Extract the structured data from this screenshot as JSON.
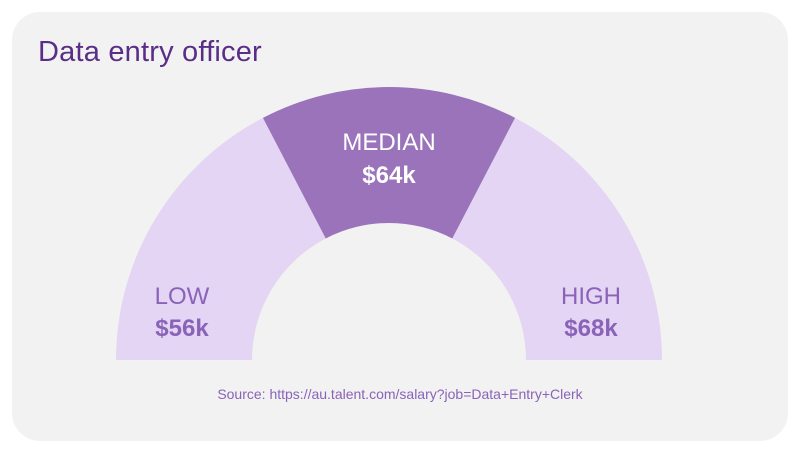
{
  "chart_data": {
    "type": "gauge",
    "title": "Data entry officer",
    "segments": [
      {
        "key": "low",
        "label": "LOW",
        "value_label": "$56k",
        "value": 56
      },
      {
        "key": "median",
        "label": "MEDIAN",
        "value_label": "$64k",
        "value": 64
      },
      {
        "key": "high",
        "label": "HIGH",
        "value_label": "$68k",
        "value": 68
      }
    ],
    "source": "Source: https://au.talent.com/salary?job=Data+Entry+Clerk",
    "colors": {
      "light": "#e3d5f3",
      "highlight": "#9a73ba",
      "light_text": "#8a63b8",
      "highlight_text": "#ffffff"
    }
  }
}
